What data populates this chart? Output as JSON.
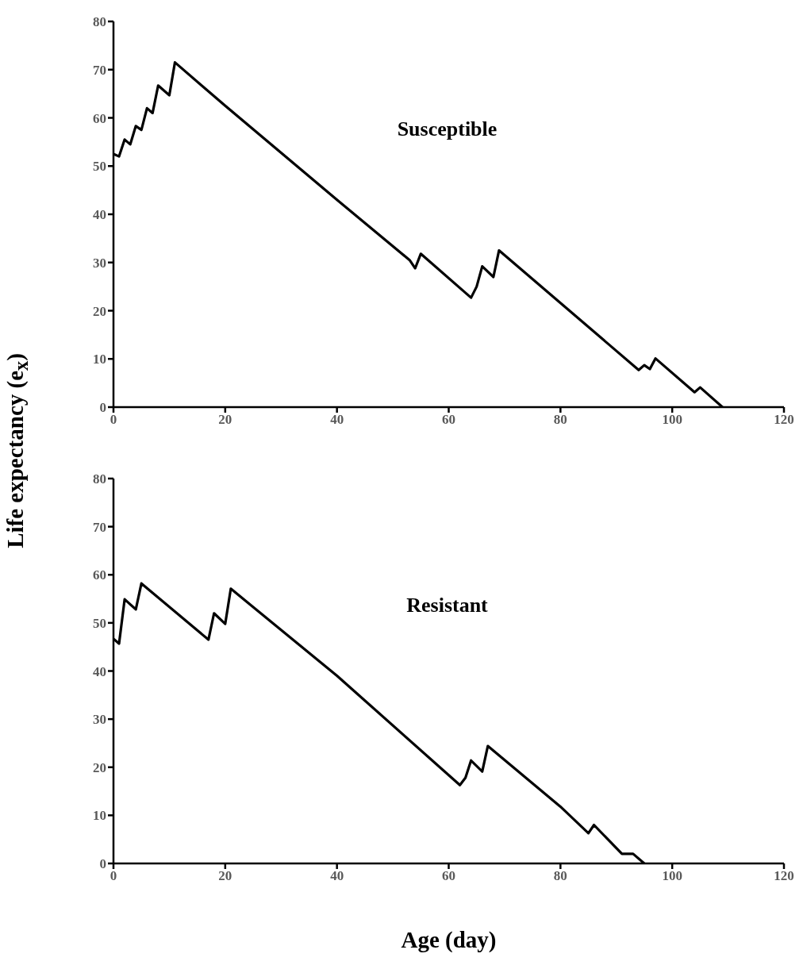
{
  "chart_data": [
    {
      "type": "line",
      "title": "Susceptible",
      "ylabel": "Life expectancy (e$_{x}$)",
      "xlim": [
        0,
        120
      ],
      "xticks": [
        0,
        20,
        40,
        60,
        80,
        100,
        120
      ],
      "ylim": [
        0,
        80
      ],
      "yticks": [
        0,
        10,
        20,
        30,
        40,
        50,
        60,
        70,
        80
      ],
      "grid": false,
      "marker": "none",
      "line_style": "solid",
      "series": [
        {
          "color": "#000000",
          "x": [
            0,
            1,
            2,
            3,
            4,
            5,
            6,
            7,
            8,
            10,
            11,
            20,
            40,
            53,
            54,
            55,
            64,
            65,
            66,
            68,
            69,
            94,
            95,
            96,
            97,
            104,
            105,
            109
          ],
          "values": [
            52.5,
            52,
            55.5,
            54.5,
            58.3,
            57.5,
            62,
            61,
            66.7,
            64.7,
            71.5,
            62.5,
            43,
            30.5,
            28.8,
            31.8,
            22.7,
            25,
            29.2,
            27,
            32.5,
            7.7,
            8.7,
            7.9,
            10.1,
            3.1,
            4.1,
            0
          ]
        }
      ]
    },
    {
      "type": "line",
      "title": "Resistant",
      "xlabel": "Age (day)",
      "xlim": [
        0,
        120
      ],
      "xticks": [
        0,
        20,
        40,
        60,
        80,
        100,
        120
      ],
      "ylim": [
        0,
        80
      ],
      "yticks": [
        0,
        10,
        20,
        30,
        40,
        50,
        60,
        70,
        80
      ],
      "grid": false,
      "marker": "none",
      "line_style": "solid",
      "series": [
        {
          "color": "#000000",
          "x": [
            0,
            1,
            2,
            4,
            5,
            17,
            18,
            20,
            21,
            40,
            62,
            63,
            64,
            66,
            67,
            80,
            85,
            86,
            91,
            93,
            95
          ],
          "values": [
            46.7,
            45.7,
            54.9,
            52.8,
            58.2,
            46.5,
            52,
            49.8,
            57.1,
            39,
            16.3,
            17.8,
            21.4,
            19.1,
            24.4,
            11.8,
            6.3,
            8,
            2,
            2,
            0
          ]
        }
      ]
    }
  ]
}
